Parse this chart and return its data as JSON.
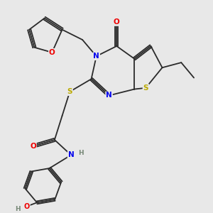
{
  "bg_color": "#e8e8e8",
  "bond_color": "#2a2a2a",
  "colors": {
    "N": "#0000ee",
    "O": "#ee0000",
    "S": "#bbaa00",
    "H": "#778877",
    "C": "#2a2a2a"
  },
  "figsize": [
    3.0,
    3.0
  ],
  "dpi": 100
}
